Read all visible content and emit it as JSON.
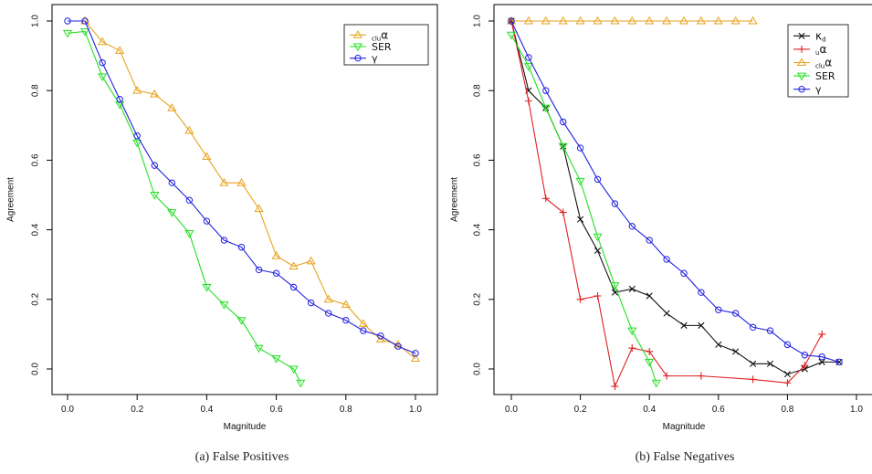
{
  "chart_data": [
    {
      "type": "line",
      "xlabel": "Magnitude",
      "ylabel": "Agreement",
      "xlim": [
        0,
        1
      ],
      "ylim": [
        0,
        1
      ],
      "x_ticks": [
        "0.0",
        "0.2",
        "0.4",
        "0.6",
        "0.8",
        "1.0"
      ],
      "y_ticks": [
        "0.0",
        "0.2",
        "0.4",
        "0.6",
        "0.8",
        "1.0"
      ],
      "grid": false,
      "legend_position": "top-right",
      "caption": "(a)  False Positives",
      "series": [
        {
          "name": "cluα",
          "sub": "clu",
          "sym": "α",
          "color": "#E8A21C",
          "marker": "triangle-up",
          "x": [
            0.05,
            0.1,
            0.15,
            0.2,
            0.25,
            0.3,
            0.35,
            0.4,
            0.45,
            0.5,
            0.55,
            0.6,
            0.65,
            0.7,
            0.75,
            0.8,
            0.85,
            0.9,
            0.95,
            1.0
          ],
          "y": [
            1.0,
            0.94,
            0.915,
            0.8,
            0.79,
            0.75,
            0.685,
            0.61,
            0.535,
            0.535,
            0.46,
            0.325,
            0.295,
            0.31,
            0.2,
            0.185,
            0.13,
            0.085,
            0.07,
            0.03
          ]
        },
        {
          "name": "SER",
          "sub": "",
          "sym": "SER",
          "color": "#22E022",
          "marker": "triangle-down",
          "x": [
            0.0,
            0.05,
            0.1,
            0.15,
            0.2,
            0.25,
            0.3,
            0.35,
            0.4,
            0.45,
            0.5,
            0.55,
            0.6,
            0.65,
            0.67
          ],
          "y": [
            0.965,
            0.97,
            0.84,
            0.76,
            0.65,
            0.5,
            0.45,
            0.39,
            0.235,
            0.185,
            0.14,
            0.06,
            0.03,
            0.0,
            -0.04
          ]
        },
        {
          "name": "γ",
          "sub": "",
          "sym": "γ",
          "color": "#2020E0",
          "marker": "circle",
          "x": [
            0.0,
            0.05,
            0.1,
            0.15,
            0.2,
            0.25,
            0.3,
            0.35,
            0.4,
            0.45,
            0.5,
            0.55,
            0.6,
            0.65,
            0.7,
            0.75,
            0.8,
            0.85,
            0.9,
            0.95,
            1.0
          ],
          "y": [
            1.0,
            1.0,
            0.88,
            0.775,
            0.67,
            0.585,
            0.535,
            0.485,
            0.425,
            0.37,
            0.35,
            0.285,
            0.275,
            0.235,
            0.19,
            0.16,
            0.14,
            0.11,
            0.095,
            0.065,
            0.045
          ]
        }
      ]
    },
    {
      "type": "line",
      "xlabel": "Magnitude",
      "ylabel": "Agreement",
      "xlim": [
        0,
        1
      ],
      "ylim": [
        0,
        1
      ],
      "x_ticks": [
        "0.0",
        "0.2",
        "0.4",
        "0.6",
        "0.8",
        "1.0"
      ],
      "y_ticks": [
        "0.0",
        "0.2",
        "0.4",
        "0.6",
        "0.8",
        "1.0"
      ],
      "grid": false,
      "legend_position": "top-right",
      "caption": "(b)  False Negatives",
      "series": [
        {
          "name": "κd",
          "sub": "",
          "sym": "κ",
          "subr": "d",
          "color": "#111111",
          "marker": "x",
          "x": [
            0.0,
            0.05,
            0.1,
            0.15,
            0.2,
            0.25,
            0.3,
            0.35,
            0.4,
            0.45,
            0.5,
            0.55,
            0.6,
            0.65,
            0.7,
            0.75,
            0.8,
            0.85,
            0.9,
            0.95
          ],
          "y": [
            1.0,
            0.8,
            0.75,
            0.64,
            0.43,
            0.34,
            0.22,
            0.23,
            0.21,
            0.16,
            0.125,
            0.125,
            0.07,
            0.05,
            0.015,
            0.015,
            -0.015,
            0.0,
            0.02,
            0.02
          ]
        },
        {
          "name": "uα",
          "sub": "u",
          "sym": "α",
          "color": "#E02020",
          "marker": "plus",
          "x": [
            0.0,
            0.05,
            0.1,
            0.15,
            0.2,
            0.25,
            0.3,
            0.35,
            0.4,
            0.45,
            0.55,
            0.7,
            0.8,
            0.85,
            0.9
          ],
          "y": [
            1.0,
            0.77,
            0.49,
            0.45,
            0.2,
            0.21,
            -0.05,
            0.06,
            0.05,
            -0.02,
            -0.02,
            -0.03,
            -0.04,
            0.01,
            0.1
          ]
        },
        {
          "name": "cluα",
          "sub": "clu",
          "sym": "α",
          "color": "#E8A21C",
          "marker": "triangle-up",
          "x": [
            0.0,
            0.05,
            0.1,
            0.15,
            0.2,
            0.25,
            0.3,
            0.35,
            0.4,
            0.45,
            0.5,
            0.55,
            0.6,
            0.65,
            0.7
          ],
          "y": [
            1.0,
            1.0,
            1.0,
            1.0,
            1.0,
            1.0,
            1.0,
            1.0,
            1.0,
            1.0,
            1.0,
            1.0,
            1.0,
            1.0,
            1.0
          ]
        },
        {
          "name": "SER",
          "sub": "",
          "sym": "SER",
          "color": "#22E022",
          "marker": "triangle-down",
          "x": [
            0.0,
            0.05,
            0.1,
            0.15,
            0.2,
            0.25,
            0.3,
            0.35,
            0.4,
            0.42
          ],
          "y": [
            0.96,
            0.87,
            0.75,
            0.64,
            0.54,
            0.38,
            0.24,
            0.11,
            0.02,
            -0.04
          ]
        },
        {
          "name": "γ",
          "sub": "",
          "sym": "γ",
          "color": "#2020E0",
          "marker": "circle",
          "x": [
            0.0,
            0.05,
            0.1,
            0.15,
            0.2,
            0.25,
            0.3,
            0.35,
            0.4,
            0.45,
            0.5,
            0.55,
            0.6,
            0.65,
            0.7,
            0.75,
            0.8,
            0.85,
            0.9,
            0.95
          ],
          "y": [
            1.0,
            0.895,
            0.8,
            0.71,
            0.635,
            0.545,
            0.475,
            0.41,
            0.37,
            0.315,
            0.275,
            0.22,
            0.17,
            0.16,
            0.12,
            0.11,
            0.07,
            0.04,
            0.035,
            0.02
          ]
        }
      ]
    }
  ]
}
